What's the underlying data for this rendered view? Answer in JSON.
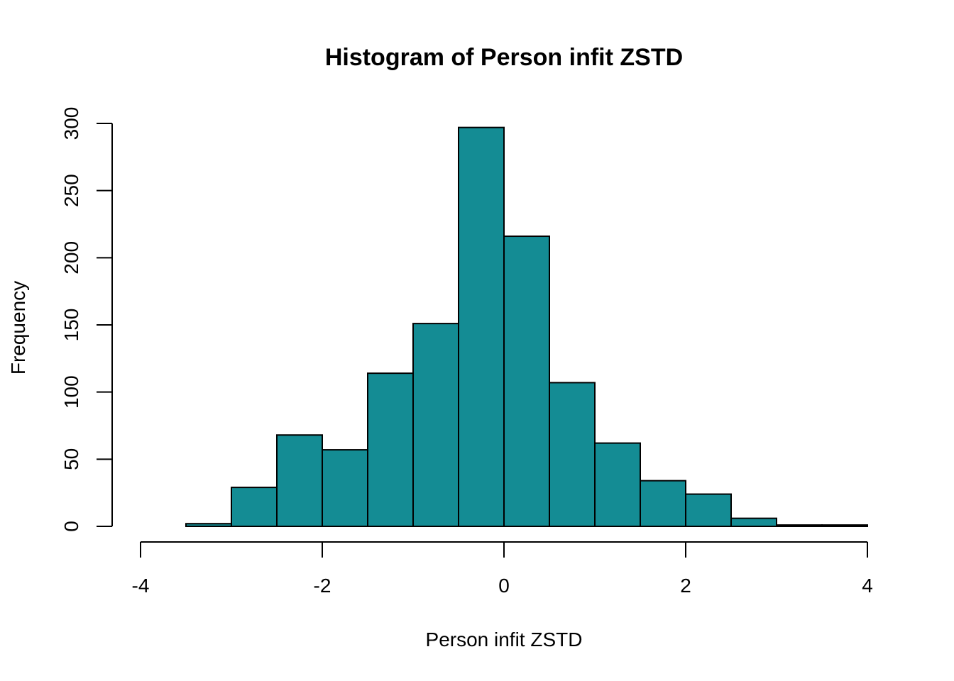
{
  "chart_data": {
    "type": "bar",
    "title": "Histogram of Person infit ZSTD",
    "xlabel": "Person infit ZSTD",
    "ylabel": "Frequency",
    "bin_edges": [
      -3.5,
      -3.0,
      -2.5,
      -2.0,
      -1.5,
      -1.0,
      -0.5,
      0.0,
      0.5,
      1.0,
      1.5,
      2.0,
      2.5,
      3.0,
      3.5,
      4.0
    ],
    "values": [
      2,
      29,
      68,
      57,
      114,
      151,
      297,
      216,
      107,
      62,
      34,
      24,
      6,
      1,
      1
    ],
    "xlim": [
      -4,
      4
    ],
    "ylim": [
      0,
      300
    ],
    "xticks": [
      -4,
      -2,
      0,
      2,
      4
    ],
    "yticks": [
      0,
      50,
      100,
      150,
      200,
      250,
      300
    ],
    "bar_color": "#148c94",
    "grid": false
  }
}
